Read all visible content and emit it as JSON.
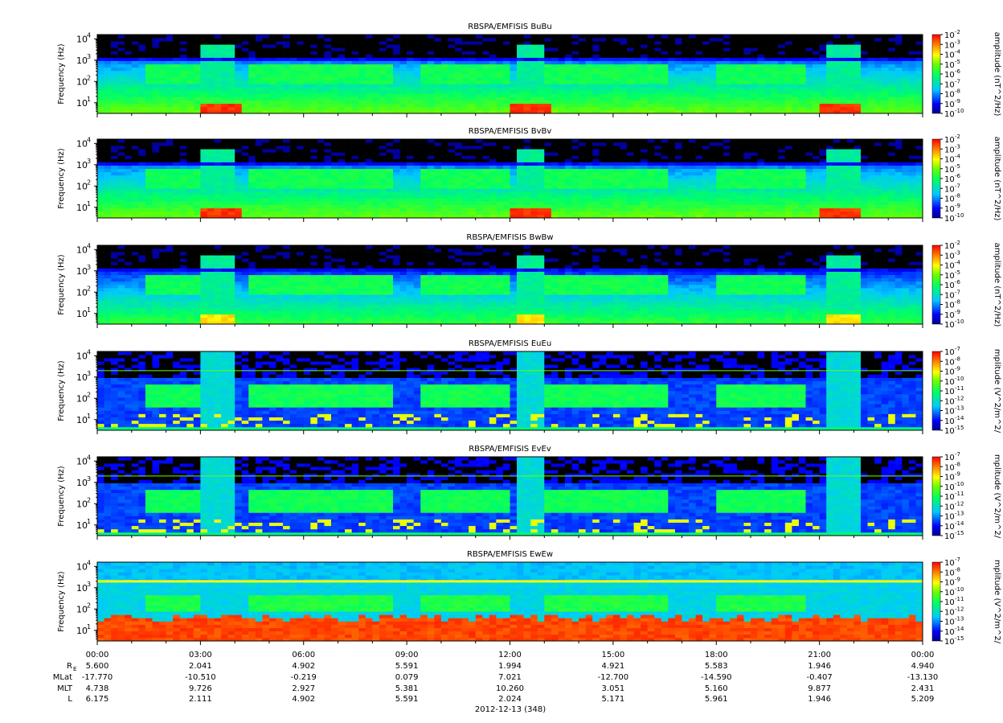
{
  "chart_data": {
    "type": "heatmap",
    "date_label": "2012-12-13 (348)",
    "x_ticks": [
      "00:00",
      "03:00",
      "06:00",
      "09:00",
      "12:00",
      "15:00",
      "18:00",
      "21:00",
      "00:00"
    ],
    "ephemeris": [
      {
        "label": "R",
        "sub": "E",
        "values": [
          "5.600",
          "2.041",
          "4.902",
          "5.591",
          "1.994",
          "4.921",
          "5.583",
          "1.946",
          "4.940"
        ]
      },
      {
        "label": "MLat",
        "sub": "",
        "values": [
          "-17.770",
          "-10.510",
          "-0.219",
          "0.079",
          "7.021",
          "-12.700",
          "-14.590",
          "-0.407",
          "-13.130"
        ]
      },
      {
        "label": "MLT",
        "sub": "",
        "values": [
          "4.738",
          "9.726",
          "2.927",
          "5.381",
          "10.260",
          "3.051",
          "5.160",
          "9.877",
          "2.431"
        ]
      },
      {
        "label": "L",
        "sub": "",
        "values": [
          "6.175",
          "2.111",
          "4.902",
          "5.591",
          "2.024",
          "5.171",
          "5.961",
          "1.946",
          "5.209"
        ]
      }
    ],
    "panels": [
      {
        "title": "RBSPA/EMFISIS  BuBu",
        "ylabel": "Frequency (Hz)",
        "cb_label": "amplitude (nT^2/Hz)",
        "zrange": [
          -10,
          -2
        ],
        "kind": "B"
      },
      {
        "title": "RBSPA/EMFISIS  BvBv",
        "ylabel": "Frequency (Hz)",
        "cb_label": "amplitude (nT^2/Hz)",
        "zrange": [
          -10,
          -2
        ],
        "kind": "B"
      },
      {
        "title": "RBSPA/EMFISIS  BwBw",
        "ylabel": "Frequency (Hz)",
        "cb_label": "amplitude (nT^2/Hz)",
        "zrange": [
          -10,
          -2
        ],
        "kind": "Bw"
      },
      {
        "title": "RBSPA/EMFISIS  EuEu",
        "ylabel": "Frequency (Hz)",
        "cb_label": "mplitude (V^2/m^2/",
        "zrange": [
          -15,
          -7
        ],
        "kind": "E"
      },
      {
        "title": "RBSPA/EMFISIS  EvEv",
        "ylabel": "Frequency (Hz)",
        "cb_label": "mplitude (V^2/m^2/",
        "zrange": [
          -15,
          -7
        ],
        "kind": "E"
      },
      {
        "title": "RBSPA/EMFISIS  EwEw",
        "ylabel": "Frequency (Hz)",
        "cb_label": "mplitude (V^2/m^2/",
        "zrange": [
          -15,
          -7
        ],
        "kind": "Ew"
      }
    ],
    "y_scale": "log",
    "y_ticks": [
      "10",
      "10",
      "10",
      "10"
    ],
    "y_tick_exponents": [
      "1",
      "2",
      "3",
      "4"
    ],
    "colorscale": "rainbow (blue-cyan-green-yellow-red)"
  }
}
